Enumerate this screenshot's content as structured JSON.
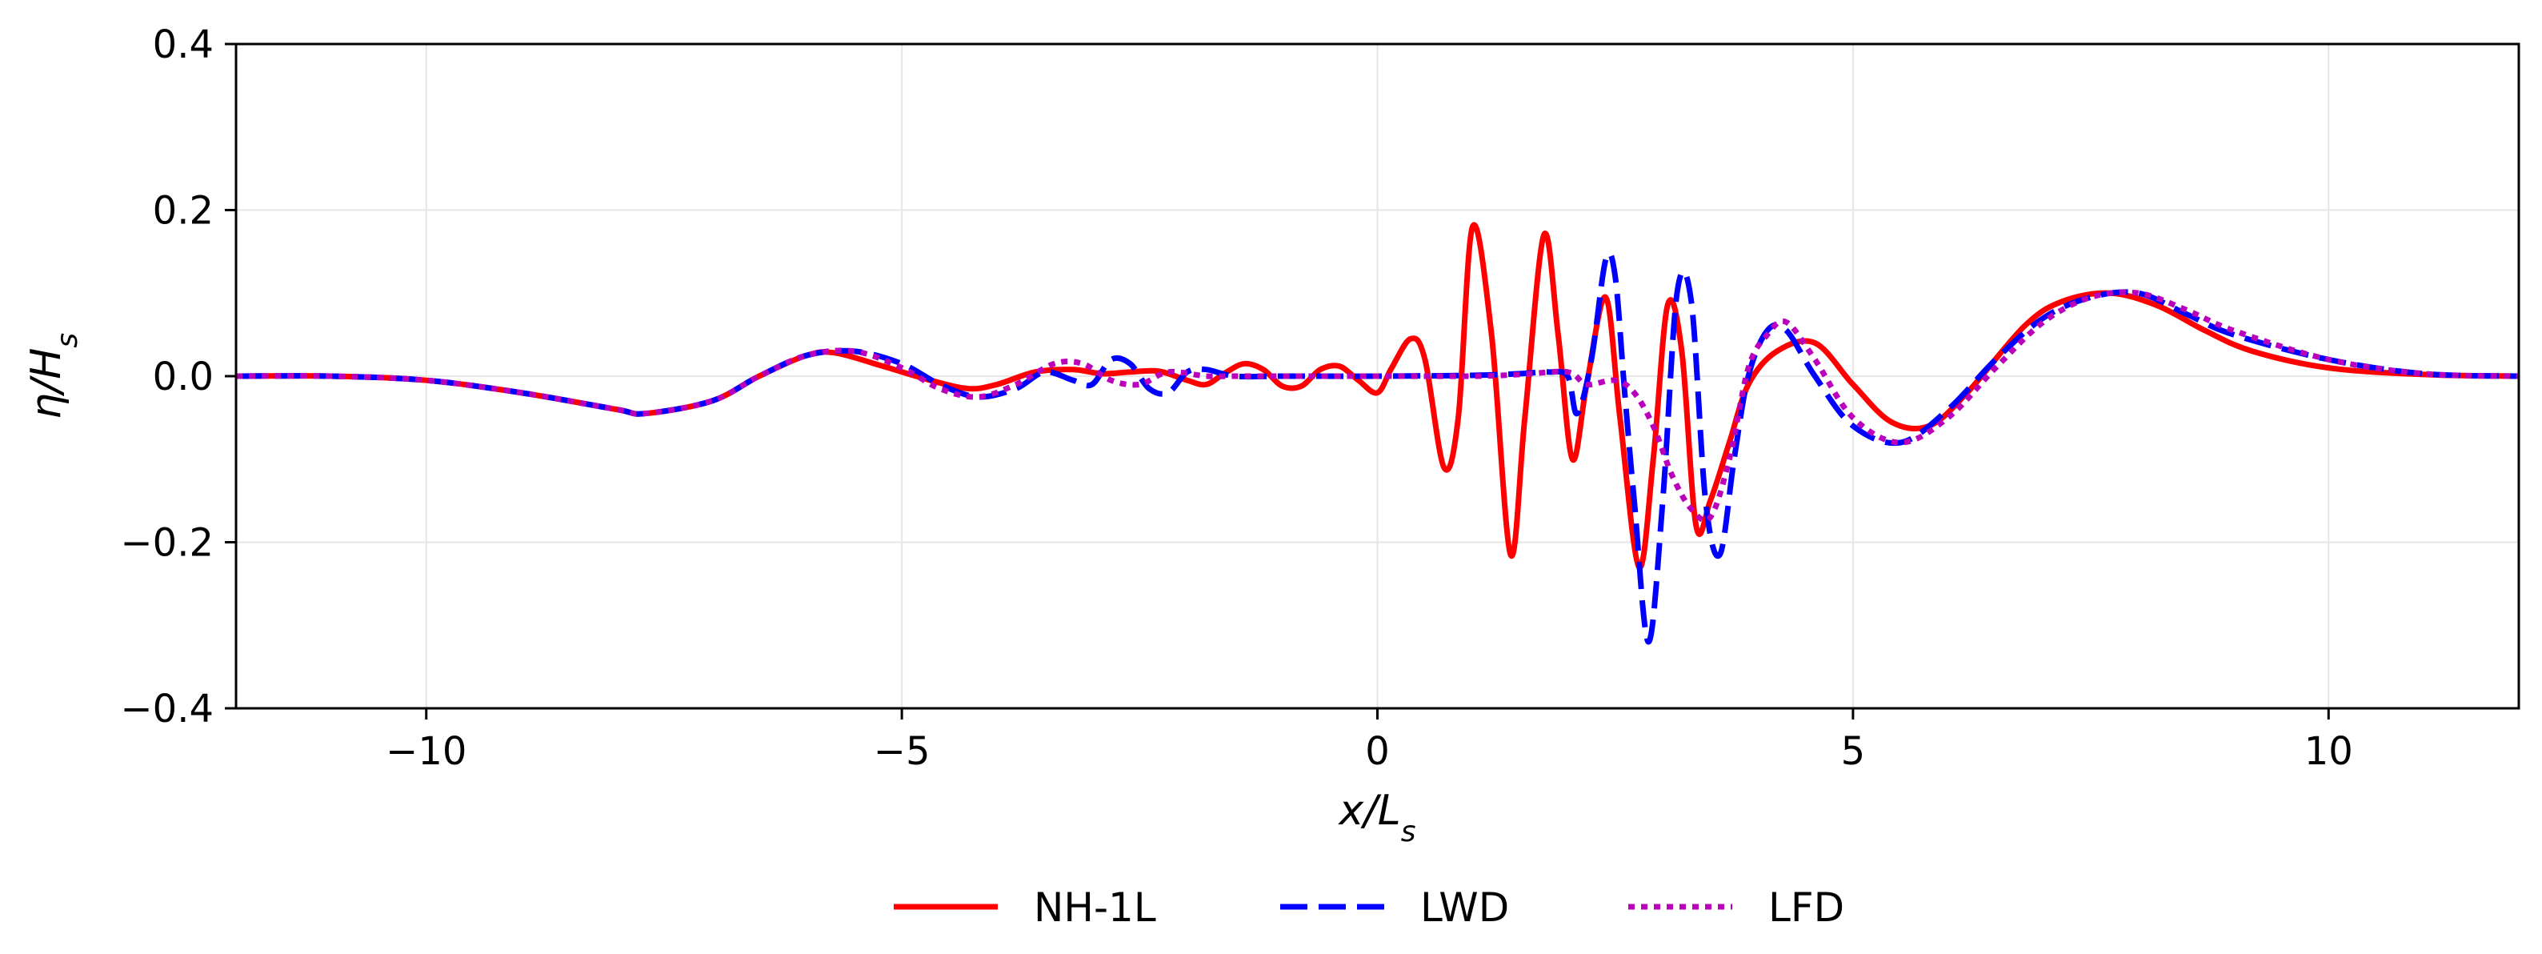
{
  "chart_data": {
    "type": "line",
    "xlabel": "x/L_s",
    "ylabel": "η/H_s",
    "xlim": [
      -12,
      12
    ],
    "ylim": [
      -0.4,
      0.4
    ],
    "xticks": [
      -10,
      -5,
      0,
      5,
      10
    ],
    "yticks": [
      -0.4,
      -0.2,
      0.0,
      0.2,
      0.4
    ],
    "xtick_labels": [
      "−10",
      "−5",
      "0",
      "5",
      "10"
    ],
    "ytick_labels": [
      "−0.4",
      "−0.2",
      "0.0",
      "0.2",
      "0.4"
    ],
    "grid": true,
    "legend_position": "below-center",
    "series": [
      {
        "name": "NH-1L",
        "color": "#ff0000",
        "style": "solid",
        "x": [
          -12,
          -11,
          -10,
          -9,
          -8,
          -7.7,
          -7,
          -6.5,
          -6,
          -5.7,
          -5.2,
          -4.7,
          -4.3,
          -4.0,
          -3.6,
          -3.2,
          -2.9,
          -2.6,
          -2.3,
          -2.0,
          -1.8,
          -1.6,
          -1.4,
          -1.2,
          -1.0,
          -0.8,
          -0.6,
          -0.4,
          -0.2,
          0.0,
          0.15,
          0.35,
          0.5,
          0.7,
          0.85,
          1.0,
          1.2,
          1.4,
          1.55,
          1.75,
          1.9,
          2.05,
          2.2,
          2.4,
          2.55,
          2.75,
          2.9,
          3.05,
          3.2,
          3.35,
          3.5,
          3.7,
          3.9,
          4.2,
          4.6,
          5.0,
          5.4,
          5.8,
          6.2,
          6.8,
          7.2,
          7.7,
          8.2,
          8.7,
          9.2,
          10,
          11,
          12
        ],
        "y": [
          0,
          0,
          -0.005,
          -0.02,
          -0.04,
          -0.045,
          -0.03,
          0,
          0.025,
          0.028,
          0.012,
          -0.005,
          -0.015,
          -0.01,
          0.005,
          0.008,
          0.003,
          0.005,
          0.006,
          -0.005,
          -0.01,
          0.004,
          0.015,
          0.008,
          -0.012,
          -0.012,
          0.008,
          0.012,
          -0.005,
          -0.02,
          0.01,
          0.045,
          0.02,
          -0.11,
          -0.05,
          0.18,
          0.05,
          -0.215,
          -0.05,
          0.17,
          0.05,
          -0.1,
          -0.01,
          0.095,
          -0.05,
          -0.23,
          -0.1,
          0.085,
          0.03,
          -0.18,
          -0.15,
          -0.08,
          -0.01,
          0.03,
          0.04,
          -0.01,
          -0.055,
          -0.06,
          -0.02,
          0.06,
          0.09,
          0.1,
          0.085,
          0.055,
          0.03,
          0.01,
          0.002,
          0
        ]
      },
      {
        "name": "LWD",
        "color": "#0000ff",
        "style": "dashed",
        "x": [
          -12,
          -11,
          -10,
          -9,
          -8,
          -7.7,
          -7,
          -6.5,
          -6,
          -5.5,
          -5.0,
          -4.6,
          -4.2,
          -3.8,
          -3.5,
          -3.2,
          -3.0,
          -2.8,
          -2.6,
          -2.4,
          -2.2,
          -2.0,
          -1.8,
          -1.5,
          -1.0,
          0,
          1.0,
          1.5,
          1.8,
          2.0,
          2.1,
          2.25,
          2.4,
          2.5,
          2.6,
          2.7,
          2.85,
          3.0,
          3.15,
          3.3,
          3.45,
          3.6,
          3.75,
          3.9,
          4.1,
          4.3,
          4.6,
          5.0,
          5.5,
          6.0,
          6.5,
          7.0,
          7.5,
          8.0,
          8.5,
          9.0,
          10,
          11,
          12
        ],
        "y": [
          0,
          0,
          -0.005,
          -0.02,
          -0.04,
          -0.045,
          -0.03,
          0,
          0.025,
          0.03,
          0.015,
          -0.01,
          -0.025,
          -0.015,
          0.005,
          -0.005,
          -0.01,
          0.02,
          0.015,
          -0.015,
          -0.02,
          0.005,
          0.008,
          0,
          0,
          0,
          0.001,
          0.003,
          0.005,
          0.0,
          -0.045,
          0.02,
          0.14,
          0.12,
          -0.02,
          -0.15,
          -0.32,
          -0.15,
          0.1,
          0.09,
          -0.15,
          -0.215,
          -0.1,
          0.0,
          0.055,
          0.055,
          0.0,
          -0.06,
          -0.08,
          -0.04,
          0.02,
          0.07,
          0.095,
          0.1,
          0.075,
          0.05,
          0.02,
          0.003,
          0
        ]
      },
      {
        "name": "LFD",
        "color": "#bb00bb",
        "style": "dotted",
        "x": [
          -12,
          -11,
          -10,
          -9,
          -8,
          -7.7,
          -7,
          -6.5,
          -6,
          -5.5,
          -5.0,
          -4.6,
          -4.2,
          -3.8,
          -3.4,
          -3.1,
          -2.8,
          -2.5,
          -2.2,
          -1.8,
          -1.5,
          -1.0,
          0,
          1.0,
          1.5,
          2.0,
          2.2,
          2.5,
          2.7,
          2.9,
          3.1,
          3.3,
          3.5,
          3.7,
          3.9,
          4.1,
          4.3,
          4.6,
          5.0,
          5.5,
          6.0,
          6.5,
          7.0,
          7.5,
          8.0,
          8.5,
          9.0,
          10,
          11,
          12
        ],
        "y": [
          0,
          0,
          -0.005,
          -0.02,
          -0.04,
          -0.045,
          -0.03,
          0,
          0.025,
          0.03,
          0.01,
          -0.015,
          -0.025,
          -0.01,
          0.015,
          0.015,
          -0.005,
          -0.01,
          0.005,
          0,
          0,
          0,
          0,
          0,
          0.002,
          0.005,
          -0.01,
          -0.005,
          -0.02,
          -0.06,
          -0.12,
          -0.16,
          -0.17,
          -0.1,
          0.01,
          0.05,
          0.065,
          0.02,
          -0.05,
          -0.08,
          -0.05,
          0.01,
          0.065,
          0.095,
          0.1,
          0.08,
          0.055,
          0.02,
          0.003,
          0
        ]
      }
    ]
  }
}
